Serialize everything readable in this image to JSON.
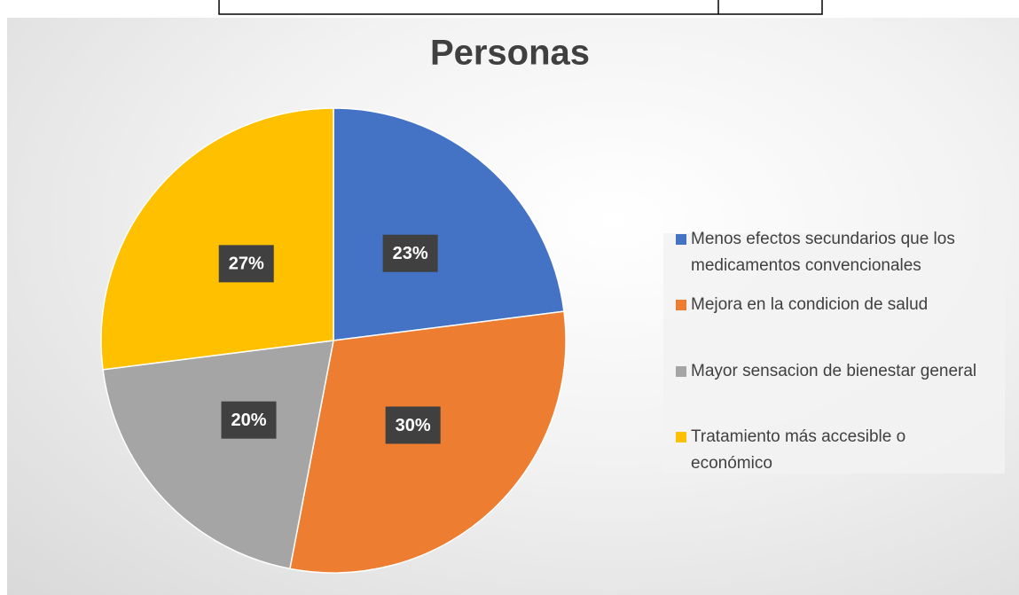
{
  "chart_data": {
    "type": "pie",
    "title": "Personas",
    "categories": [
      "Menos efectos secundarios que los medicamentos convencionales",
      "Mejora en la condicion de salud",
      "Mayor sensacion de bienestar general",
      "Tratamiento más accesible o económico"
    ],
    "values": [
      23,
      30,
      20,
      27
    ],
    "value_labels": [
      "23%",
      "30%",
      "20%",
      "27%"
    ],
    "colors": [
      "#4472c4",
      "#ed7d31",
      "#a5a5a5",
      "#ffc000"
    ],
    "legend": "right"
  }
}
